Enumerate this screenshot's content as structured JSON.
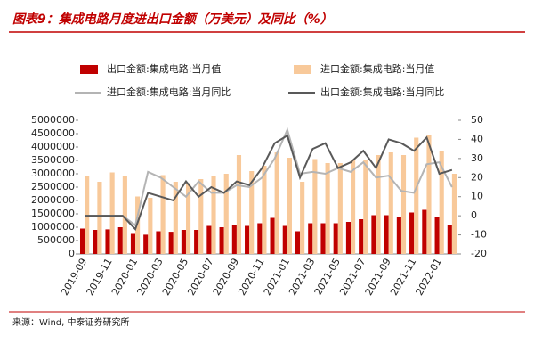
{
  "chart_data": {
    "type": "bar-line",
    "title": "图表9：集成电路月度进出口金额（万美元）及同比（%）",
    "source": "来源：Wind, 中泰证券研究所",
    "categories": [
      "2019-09",
      null,
      "2019-11",
      null,
      "2020-01",
      null,
      "2020-03",
      null,
      "2020-05",
      null,
      "2020-07",
      null,
      "2020-09",
      null,
      "2020-11",
      null,
      "2021-01",
      null,
      "2021-03",
      null,
      "2021-05",
      null,
      "2021-07",
      null,
      "2021-09",
      null,
      "2021-11",
      null,
      "2022-01",
      null
    ],
    "series": [
      {
        "name": "出口金额:集成电路:当月值",
        "type": "bar",
        "color": "#c00000",
        "values": [
          950000,
          900000,
          920000,
          1000000,
          750000,
          720000,
          850000,
          830000,
          900000,
          900000,
          1050000,
          1000000,
          1100000,
          1050000,
          1150000,
          1350000,
          1050000,
          850000,
          1150000,
          1150000,
          1150000,
          1200000,
          1300000,
          1450000,
          1450000,
          1380000,
          1550000,
          1650000,
          1400000,
          1100000
        ]
      },
      {
        "name": "进口金额:集成电路:当月值",
        "type": "bar",
        "color": "#f8c99a",
        "values": [
          2900000,
          2700000,
          3050000,
          2900000,
          2150000,
          2100000,
          2950000,
          2700000,
          2650000,
          2800000,
          2900000,
          3000000,
          3700000,
          3100000,
          3300000,
          3800000,
          3600000,
          2700000,
          3550000,
          3400000,
          3400000,
          3500000,
          3500000,
          3700000,
          3800000,
          3700000,
          4350000,
          4450000,
          3850000,
          3000000
        ]
      },
      {
        "name": "进口金额:集成电路:当月同比",
        "type": "line",
        "axis": "y2",
        "color": "#b4b4b4",
        "values": [
          0,
          0,
          0,
          0,
          -5,
          23,
          20,
          15,
          10,
          18,
          12,
          12,
          16,
          15,
          20,
          30,
          45,
          22,
          23,
          22,
          25,
          23,
          28,
          20,
          21,
          13,
          12,
          27,
          28,
          15
        ]
      },
      {
        "name": "出口金额:集成电路:当月同比",
        "type": "line",
        "axis": "y2",
        "color": "#595959",
        "values": [
          0,
          0,
          0,
          0,
          -7,
          12,
          10,
          8,
          18,
          10,
          15,
          12,
          18,
          16,
          25,
          38,
          42,
          20,
          35,
          38,
          25,
          28,
          34,
          25,
          40,
          38,
          34,
          41,
          22,
          24
        ]
      }
    ],
    "ylim": [
      0,
      5000000
    ],
    "yticks": [
      0,
      500000,
      1000000,
      1500000,
      2000000,
      2500000,
      3000000,
      3500000,
      4000000,
      4500000,
      5000000
    ],
    "y2lim": [
      -20,
      50
    ],
    "y2ticks": [
      -20,
      -10,
      0,
      10,
      20,
      30,
      40,
      50
    ]
  }
}
